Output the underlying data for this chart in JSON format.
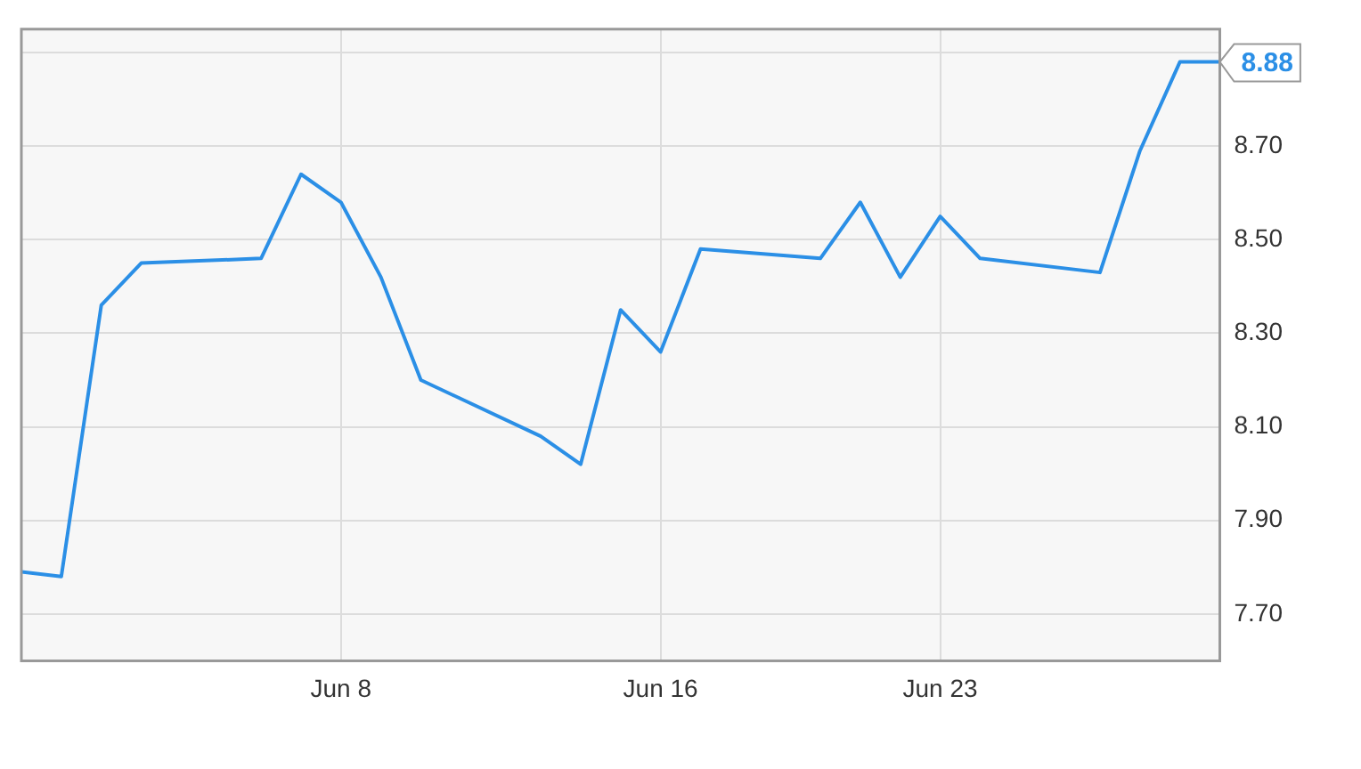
{
  "chart_data": {
    "type": "line",
    "x": [
      "--05-31",
      "--06-01",
      "--06-02",
      "--06-03",
      "--06-06",
      "--06-07",
      "--06-08",
      "--06-09",
      "--06-10",
      "--06-13",
      "--06-14",
      "--06-15",
      "--06-16",
      "--06-17",
      "--06-20",
      "--06-21",
      "--06-22",
      "--06-23",
      "--06-24",
      "--06-27",
      "--06-28",
      "--06-29",
      "--06-30"
    ],
    "series": [
      {
        "color": "#2b8fe6",
        "values": [
          7.79,
          7.78,
          8.36,
          8.45,
          8.46,
          8.64,
          8.58,
          8.42,
          8.2,
          8.08,
          8.02,
          8.35,
          8.26,
          8.48,
          8.46,
          8.58,
          8.42,
          8.55,
          8.46,
          8.43,
          8.69,
          8.88,
          8.88
        ]
      }
    ],
    "xlim": [
      "--05-31",
      "--06-30"
    ],
    "xticks": [
      {
        "value": "--06-08",
        "label": "Jun 8"
      },
      {
        "value": "--06-16",
        "label": "Jun 16"
      },
      {
        "value": "--06-23",
        "label": "Jun 23"
      }
    ],
    "ylim": [
      7.6,
      8.95
    ],
    "yticks": [
      {
        "value": 7.7,
        "label": "7.70"
      },
      {
        "value": 7.9,
        "label": "7.90"
      },
      {
        "value": 8.1,
        "label": "8.10"
      },
      {
        "value": 8.3,
        "label": "8.30"
      },
      {
        "value": 8.5,
        "label": "8.50"
      },
      {
        "value": 8.7,
        "label": "8.70"
      },
      {
        "value": 8.9,
        "label": null
      }
    ],
    "annotations": [
      {
        "text": "8.88",
        "x": "--06-30",
        "y": 8.88
      }
    ],
    "grid": true,
    "legend": false,
    "marker": "none",
    "line_style": "solid"
  }
}
